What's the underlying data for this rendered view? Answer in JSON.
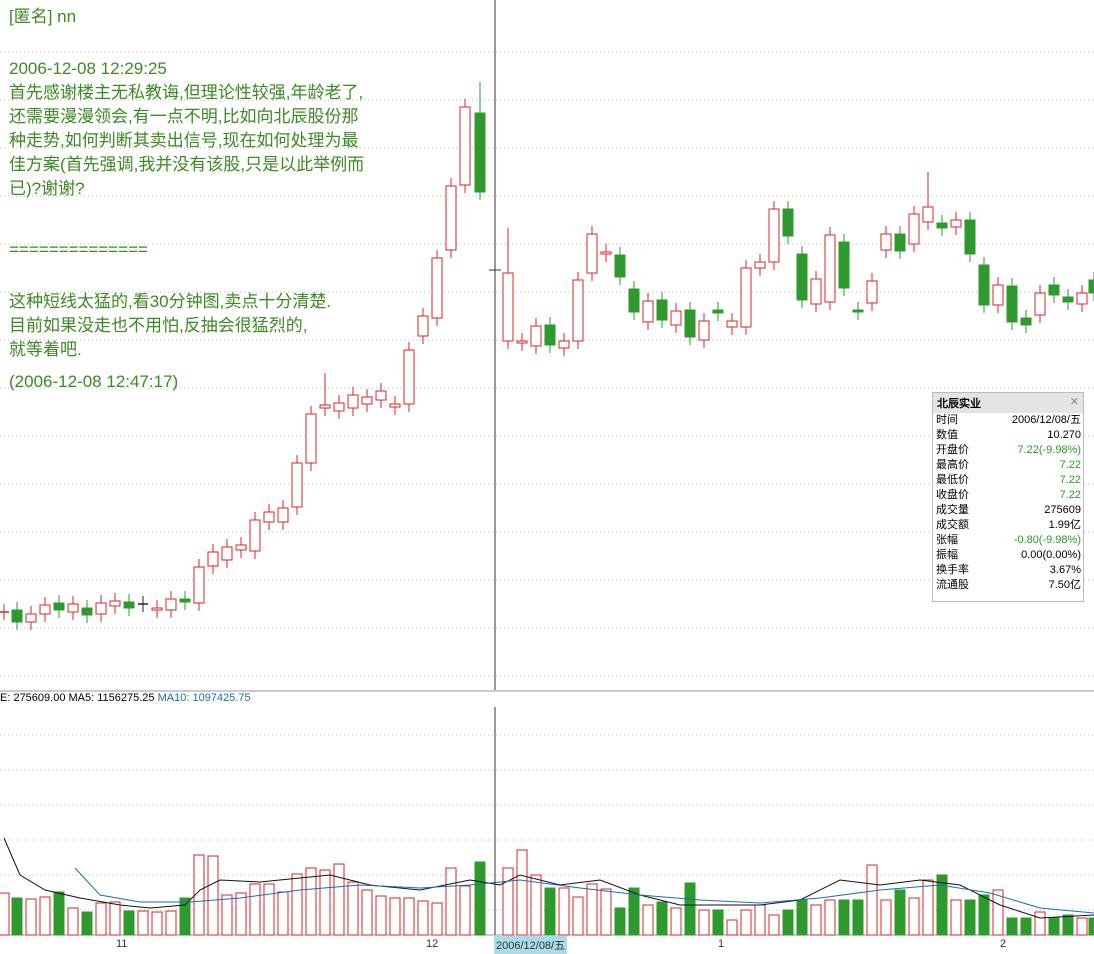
{
  "post": {
    "author": "[匿名] nn",
    "time": "2006-12-08 12:29:25",
    "lines": [
      "首先感谢楼主无私教诲,但理论性较强,年龄老了,",
      "还需要漫漫领会,有一点不明,比如向北辰股份那",
      "种走势,如何判断其卖出信号,现在如何处理为最",
      "佳方案(首先强调,我并没有该股,只是以此举例而",
      "已)?谢谢?"
    ],
    "separator": "==============",
    "reply": [
      "这种短线太猛的,看30分钟图,卖点十分清楚.",
      "目前如果没走也不用怕,反抽会很猛烈的,",
      "就等着吧."
    ],
    "reply_time": "(2006-12-08 12:47:17)"
  },
  "volume_legend": {
    "volume": "E: 275609.00",
    "ma5": "MA5: 1156275.25",
    "ma10": "MA10: 1097425.75"
  },
  "x_axis": [
    "11",
    "12",
    "2006/12/08/五",
    "1",
    "2"
  ],
  "info_box": {
    "title": "北辰实业",
    "rows": [
      [
        "时间",
        "2006/12/08/五"
      ],
      [
        "数值",
        "10.270"
      ],
      [
        "开盘价",
        "7.22(-9.98%)"
      ],
      [
        "最高价",
        "7.22"
      ],
      [
        "最低价",
        "7.22"
      ],
      [
        "收盘价",
        "7.22"
      ],
      [
        "成交量",
        "275609"
      ],
      [
        "成交额",
        "1.99亿"
      ],
      [
        "张幅",
        "-0.80(-9.98%)"
      ],
      [
        "振幅",
        "0.00(0.00%)"
      ],
      [
        "换手率",
        "3.67%"
      ],
      [
        "流通股",
        "7.50亿"
      ]
    ]
  }
}
